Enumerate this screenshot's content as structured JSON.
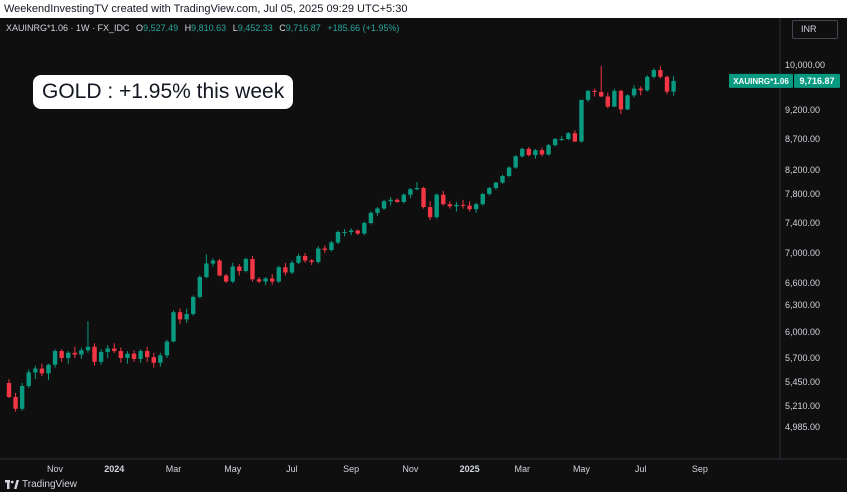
{
  "header": {
    "credit": "WeekendInvestingTV created with TradingView.com, Jul 05, 2025 09:29 UTC+5:30"
  },
  "legend": {
    "symbol": "XAUINRG*1.06 · 1W · FX_IDC",
    "open_label": "O",
    "open_value": "9,527.49",
    "high_label": "H",
    "high_value": "9,810.63",
    "low_label": "L",
    "low_value": "9,452.33",
    "close_label": "C",
    "close_value": "9,716.87",
    "change": "+185.66 (+1.95%)"
  },
  "currency_button": "INR",
  "annotation": "GOLD : +1.95% this week",
  "footer": {
    "brand": "TradingView"
  },
  "colors": {
    "up": "#089981",
    "down": "#f23645",
    "background": "#0f0f0f",
    "axis_text": "#d1d4dc",
    "price_tag": "#089981"
  },
  "chart_data": {
    "type": "candlestick",
    "series_name": "XAUINRG*1.06",
    "last_price_label": "9,716.87",
    "price_tag_symbol": "XAUINRG*1.06",
    "y_ticks": [
      10000,
      9200,
      8700,
      8200,
      7800,
      7400,
      7000,
      6600,
      6300,
      6000,
      5700,
      5450,
      5210,
      4985
    ],
    "y_tick_labels": [
      "10,000.00",
      "9,200.00",
      "8,700.00",
      "8,200.00",
      "7,800.00",
      "7,400.00",
      "7,000.00",
      "6,600.00",
      "6,300.00",
      "6,000.00",
      "5,700.00",
      "5,450.00",
      "5,210.00",
      "4,985.00"
    ],
    "x_tick_labels": [
      "Nov",
      "2024",
      "Mar",
      "May",
      "Jul",
      "Sep",
      "Nov",
      "2025",
      "Mar",
      "May",
      "Jul",
      "Sep"
    ],
    "x_tick_week_index": [
      7,
      16,
      25,
      34,
      43,
      52,
      61,
      70,
      78,
      87,
      96,
      105
    ],
    "candles": [
      [
        5440,
        5480,
        5290,
        5300
      ],
      [
        5300,
        5340,
        5150,
        5180
      ],
      [
        5180,
        5440,
        5160,
        5410
      ],
      [
        5410,
        5580,
        5390,
        5550
      ],
      [
        5550,
        5620,
        5480,
        5590
      ],
      [
        5590,
        5640,
        5510,
        5540
      ],
      [
        5540,
        5640,
        5470,
        5630
      ],
      [
        5630,
        5800,
        5600,
        5780
      ],
      [
        5780,
        5800,
        5660,
        5700
      ],
      [
        5700,
        5780,
        5640,
        5760
      ],
      [
        5760,
        5830,
        5700,
        5740
      ],
      [
        5740,
        5820,
        5690,
        5790
      ],
      [
        5790,
        6120,
        5760,
        5830
      ],
      [
        5830,
        5870,
        5620,
        5660
      ],
      [
        5660,
        5800,
        5630,
        5770
      ],
      [
        5770,
        5850,
        5700,
        5810
      ],
      [
        5810,
        5870,
        5760,
        5780
      ],
      [
        5780,
        5820,
        5650,
        5700
      ],
      [
        5700,
        5780,
        5640,
        5750
      ],
      [
        5750,
        5790,
        5660,
        5690
      ],
      [
        5690,
        5800,
        5650,
        5780
      ],
      [
        5780,
        5830,
        5660,
        5710
      ],
      [
        5710,
        5760,
        5600,
        5650
      ],
      [
        5650,
        5760,
        5610,
        5730
      ],
      [
        5730,
        5910,
        5700,
        5890
      ],
      [
        5890,
        6240,
        5880,
        6220
      ],
      [
        6220,
        6260,
        6090,
        6140
      ],
      [
        6140,
        6260,
        6100,
        6200
      ],
      [
        6200,
        6430,
        6180,
        6410
      ],
      [
        6410,
        6700,
        6390,
        6680
      ],
      [
        6680,
        6980,
        6660,
        6860
      ],
      [
        6860,
        6930,
        6820,
        6900
      ],
      [
        6900,
        6920,
        6690,
        6700
      ],
      [
        6700,
        6720,
        6600,
        6620
      ],
      [
        6620,
        6870,
        6600,
        6820
      ],
      [
        6820,
        6850,
        6700,
        6760
      ],
      [
        6760,
        6940,
        6740,
        6920
      ],
      [
        6920,
        6960,
        6620,
        6650
      ],
      [
        6650,
        6680,
        6600,
        6620
      ],
      [
        6620,
        6680,
        6570,
        6660
      ],
      [
        6660,
        6720,
        6580,
        6620
      ],
      [
        6620,
        6830,
        6600,
        6810
      ],
      [
        6810,
        6870,
        6700,
        6740
      ],
      [
        6740,
        6900,
        6720,
        6870
      ],
      [
        6870,
        6990,
        6850,
        6960
      ],
      [
        6960,
        7000,
        6870,
        6900
      ],
      [
        6900,
        6920,
        6840,
        6880
      ],
      [
        6880,
        7090,
        6860,
        7060
      ],
      [
        7060,
        7100,
        7000,
        7040
      ],
      [
        7040,
        7160,
        7020,
        7140
      ],
      [
        7140,
        7300,
        7120,
        7280
      ],
      [
        7280,
        7320,
        7220,
        7280
      ],
      [
        7280,
        7330,
        7240,
        7300
      ],
      [
        7300,
        7310,
        7240,
        7260
      ],
      [
        7260,
        7420,
        7240,
        7400
      ],
      [
        7400,
        7560,
        7380,
        7540
      ],
      [
        7540,
        7620,
        7500,
        7600
      ],
      [
        7600,
        7720,
        7580,
        7700
      ],
      [
        7700,
        7760,
        7640,
        7720
      ],
      [
        7720,
        7740,
        7680,
        7690
      ],
      [
        7690,
        7810,
        7670,
        7790
      ],
      [
        7790,
        7900,
        7740,
        7880
      ],
      [
        7880,
        8000,
        7860,
        7900
      ],
      [
        7900,
        7920,
        7600,
        7620
      ],
      [
        7620,
        7700,
        7440,
        7480
      ],
      [
        7480,
        7810,
        7460,
        7790
      ],
      [
        7790,
        7850,
        7640,
        7660
      ],
      [
        7660,
        7700,
        7600,
        7630
      ],
      [
        7630,
        7690,
        7560,
        7650
      ],
      [
        7650,
        7720,
        7600,
        7640
      ],
      [
        7640,
        7700,
        7560,
        7590
      ],
      [
        7590,
        7680,
        7540,
        7660
      ],
      [
        7660,
        7820,
        7640,
        7800
      ],
      [
        7800,
        7920,
        7780,
        7900
      ],
      [
        7900,
        8000,
        7870,
        7990
      ],
      [
        7990,
        8120,
        7970,
        8100
      ],
      [
        8100,
        8260,
        8080,
        8240
      ],
      [
        8240,
        8440,
        8220,
        8420
      ],
      [
        8420,
        8560,
        8400,
        8540
      ],
      [
        8540,
        8570,
        8420,
        8440
      ],
      [
        8440,
        8540,
        8380,
        8520
      ],
      [
        8520,
        8560,
        8420,
        8450
      ],
      [
        8450,
        8620,
        8430,
        8600
      ],
      [
        8600,
        8720,
        8580,
        8700
      ],
      [
        8700,
        8750,
        8670,
        8700
      ],
      [
        8700,
        8820,
        8680,
        8800
      ],
      [
        8800,
        8850,
        8650,
        8660
      ],
      [
        8660,
        9380,
        8640,
        9380
      ],
      [
        9380,
        9560,
        9340,
        9540
      ],
      [
        9540,
        9580,
        9440,
        9520
      ],
      [
        9520,
        9980,
        9430,
        9440
      ],
      [
        9440,
        9510,
        9230,
        9260
      ],
      [
        9260,
        9580,
        9250,
        9540
      ],
      [
        9540,
        9560,
        9130,
        9210
      ],
      [
        9210,
        9480,
        9200,
        9460
      ],
      [
        9460,
        9640,
        9420,
        9580
      ],
      [
        9580,
        9620,
        9460,
        9550
      ],
      [
        9550,
        9820,
        9530,
        9790
      ],
      [
        9790,
        9940,
        9760,
        9910
      ],
      [
        9910,
        9980,
        9760,
        9790
      ],
      [
        9790,
        9810,
        9480,
        9527
      ],
      [
        9527,
        9810,
        9452,
        9717
      ]
    ],
    "y_range": [
      4900,
      10100
    ],
    "grid": false
  }
}
